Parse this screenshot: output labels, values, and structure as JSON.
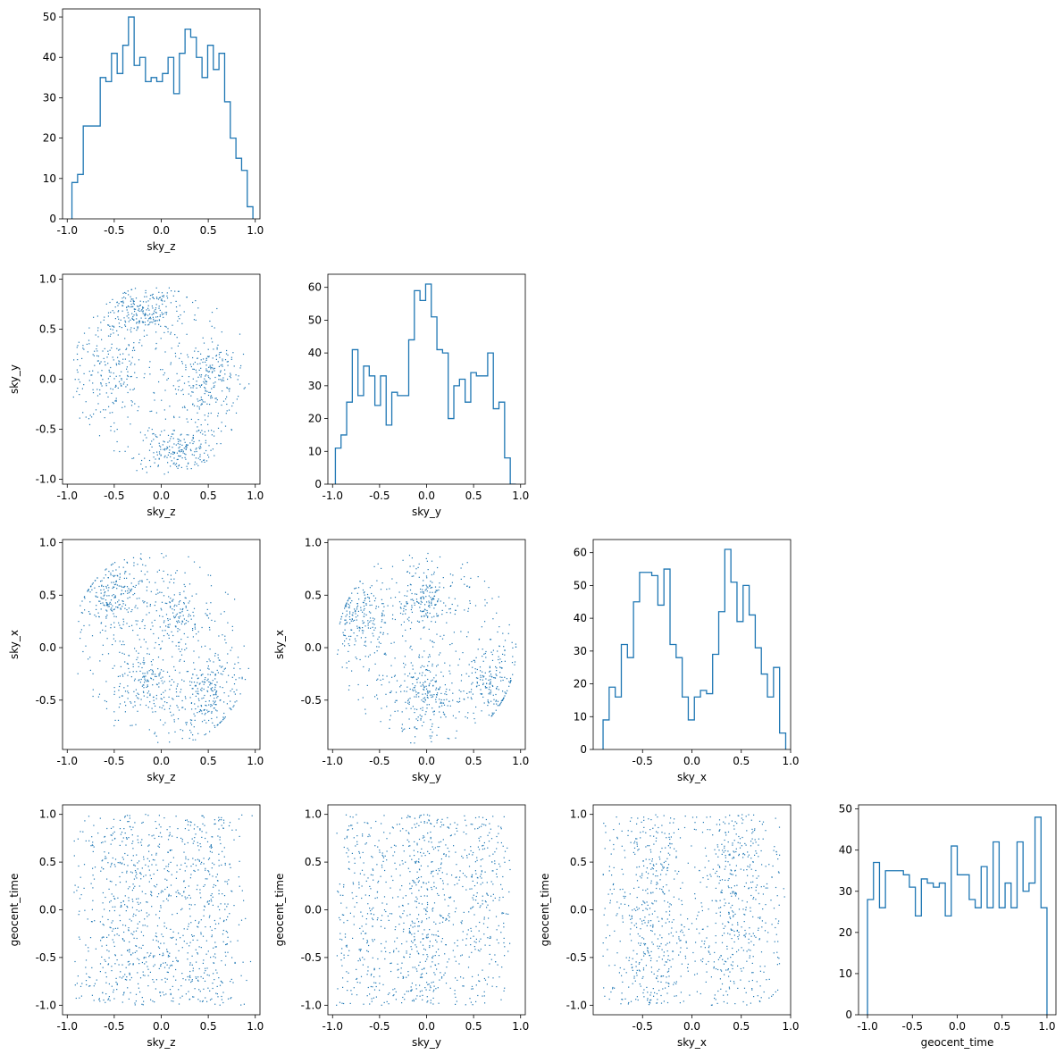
{
  "figure": {
    "variables": [
      "sky_z",
      "sky_y",
      "sky_x",
      "geocent_time"
    ],
    "color": "#1f77b4"
  },
  "chart_data": [
    {
      "type": "step-histogram",
      "row": 0,
      "col": 0,
      "xvar": "sky_z",
      "xlabel": "sky_z",
      "ylabel": "",
      "xlim": [
        -1.05,
        1.05
      ],
      "ylim": [
        0,
        52
      ],
      "xticks": [
        "-1.0",
        "-0.5",
        "0.0",
        "0.5",
        "1.0"
      ],
      "xtick_values": [
        -1.0,
        -0.5,
        0.0,
        0.5,
        1.0
      ],
      "yticks": [
        "0",
        "10",
        "20",
        "30",
        "40",
        "50"
      ],
      "ytick_values": [
        0,
        10,
        20,
        30,
        40,
        50
      ],
      "bin_range": [
        -0.95,
        0.975
      ],
      "counts": [
        9,
        11,
        23,
        23,
        23,
        35,
        34,
        41,
        36,
        43,
        50,
        38,
        40,
        34,
        35,
        34,
        36,
        40,
        31,
        41,
        47,
        45,
        40,
        35,
        43,
        37,
        41,
        29,
        20,
        15,
        12,
        3
      ]
    },
    {
      "type": "scatter",
      "row": 1,
      "col": 0,
      "xvar": "sky_z",
      "yvar": "sky_y",
      "xlabel": "sky_z",
      "ylabel": "sky_y",
      "xlim": [
        -1.05,
        1.05
      ],
      "ylim": [
        -1.05,
        1.05
      ],
      "xticks": [
        "-1.0",
        "-0.5",
        "0.0",
        "0.5",
        "1.0"
      ],
      "xtick_values": [
        -1.0,
        -0.5,
        0.0,
        0.5,
        1.0
      ],
      "yticks": [
        "-1.0",
        "-0.5",
        "0.0",
        "0.5",
        "1.0"
      ],
      "ytick_values": [
        -1.0,
        -0.5,
        0.0,
        0.5,
        1.0
      ],
      "points_note": "dense scatter of about 1000 points; clusters estimated",
      "clusters": [
        {
          "cx": -0.2,
          "cy": 0.68,
          "sx": 0.2,
          "sy": 0.12,
          "weight": 0.28
        },
        {
          "cx": 0.2,
          "cy": -0.68,
          "sx": 0.2,
          "sy": 0.12,
          "weight": 0.28
        },
        {
          "cx": 0.5,
          "cy": 0.0,
          "sx": 0.17,
          "sy": 0.22,
          "weight": 0.22
        },
        {
          "cx": -0.55,
          "cy": 0.1,
          "sx": 0.18,
          "sy": 0.25,
          "weight": 0.22
        }
      ],
      "uniform_fraction": 0.25,
      "count": 1000
    },
    {
      "type": "step-histogram",
      "row": 1,
      "col": 1,
      "xvar": "sky_y",
      "xlabel": "sky_y",
      "ylabel": "",
      "xlim": [
        -1.05,
        1.05
      ],
      "ylim": [
        0,
        64
      ],
      "xticks": [
        "-1.0",
        "-0.5",
        "0.0",
        "0.5",
        "1.0"
      ],
      "xtick_values": [
        -1.0,
        -0.5,
        0.0,
        0.5,
        1.0
      ],
      "yticks": [
        "0",
        "10",
        "20",
        "30",
        "40",
        "50",
        "60"
      ],
      "ytick_values": [
        0,
        10,
        20,
        30,
        40,
        50,
        60
      ],
      "bin_range": [
        -0.97,
        0.95
      ],
      "counts": [
        11,
        15,
        25,
        41,
        27,
        36,
        33,
        24,
        33,
        18,
        28,
        27,
        27,
        44,
        59,
        56,
        61,
        51,
        41,
        40,
        20,
        30,
        32,
        25,
        34,
        33,
        33,
        40,
        23,
        25,
        8,
        0
      ]
    },
    {
      "type": "scatter",
      "row": 2,
      "col": 0,
      "xvar": "sky_z",
      "yvar": "sky_x",
      "xlabel": "sky_z",
      "ylabel": "sky_x",
      "xlim": [
        -1.05,
        1.05
      ],
      "ylim": [
        -0.97,
        1.03
      ],
      "xticks": [
        "-1.0",
        "-0.5",
        "0.0",
        "0.5",
        "1.0"
      ],
      "xtick_values": [
        -1.0,
        -0.5,
        0.0,
        0.5,
        1.0
      ],
      "yticks": [
        "-0.5",
        "0.0",
        "0.5",
        "1.0"
      ],
      "ytick_values": [
        -0.5,
        0.0,
        0.5,
        1.0
      ],
      "clusters": [
        {
          "cx": -0.5,
          "cy": 0.5,
          "sx": 0.18,
          "sy": 0.18,
          "weight": 0.3
        },
        {
          "cx": 0.5,
          "cy": -0.5,
          "sx": 0.18,
          "sy": 0.18,
          "weight": 0.3
        },
        {
          "cx": 0.15,
          "cy": 0.3,
          "sx": 0.15,
          "sy": 0.15,
          "weight": 0.2
        },
        {
          "cx": -0.15,
          "cy": -0.35,
          "sx": 0.15,
          "sy": 0.15,
          "weight": 0.2
        }
      ],
      "uniform_fraction": 0.25,
      "count": 1000
    },
    {
      "type": "scatter",
      "row": 2,
      "col": 1,
      "xvar": "sky_y",
      "yvar": "sky_x",
      "xlabel": "sky_y",
      "ylabel": "sky_x",
      "xlim": [
        -1.05,
        1.05
      ],
      "ylim": [
        -0.97,
        1.03
      ],
      "xticks": [
        "-1.0",
        "-0.5",
        "0.0",
        "0.5",
        "1.0"
      ],
      "xtick_values": [
        -1.0,
        -0.5,
        0.0,
        0.5,
        1.0
      ],
      "yticks": [
        "-0.5",
        "0.0",
        "0.5",
        "1.0"
      ],
      "ytick_values": [
        -0.5,
        0.0,
        0.5,
        1.0
      ],
      "clusters": [
        {
          "cx": -0.7,
          "cy": 0.3,
          "sx": 0.15,
          "sy": 0.2,
          "weight": 0.25
        },
        {
          "cx": 0.0,
          "cy": 0.45,
          "sx": 0.15,
          "sy": 0.15,
          "weight": 0.25
        },
        {
          "cx": 0.0,
          "cy": -0.45,
          "sx": 0.15,
          "sy": 0.15,
          "weight": 0.25
        },
        {
          "cx": 0.7,
          "cy": -0.35,
          "sx": 0.15,
          "sy": 0.2,
          "weight": 0.25
        }
      ],
      "uniform_fraction": 0.25,
      "count": 1000
    },
    {
      "type": "step-histogram",
      "row": 2,
      "col": 2,
      "xvar": "sky_x",
      "xlabel": "sky_x",
      "ylabel": "",
      "xlim": [
        -1.0,
        1.0
      ],
      "ylim": [
        0,
        64
      ],
      "xticks": [
        "-0.5",
        "0.0",
        "0.5",
        "1.0"
      ],
      "xtick_values": [
        -0.5,
        0.0,
        0.5,
        1.0
      ],
      "yticks": [
        "0",
        "10",
        "20",
        "30",
        "40",
        "50",
        "60"
      ],
      "ytick_values": [
        0,
        10,
        20,
        30,
        40,
        50,
        60
      ],
      "bin_range": [
        -0.9,
        0.95
      ],
      "counts": [
        9,
        19,
        16,
        32,
        28,
        45,
        54,
        54,
        53,
        44,
        55,
        32,
        28,
        16,
        9,
        16,
        18,
        17,
        29,
        42,
        61,
        51,
        39,
        50,
        41,
        31,
        23,
        16,
        25,
        5
      ]
    },
    {
      "type": "scatter",
      "row": 3,
      "col": 0,
      "xvar": "sky_z",
      "yvar": "geocent_time",
      "xlabel": "sky_z",
      "ylabel": "geocent_time",
      "xlim": [
        -1.05,
        1.05
      ],
      "ylim": [
        -1.1,
        1.1
      ],
      "xticks": [
        "-1.0",
        "-0.5",
        "0.0",
        "0.5",
        "1.0"
      ],
      "xtick_values": [
        -1.0,
        -0.5,
        0.0,
        0.5,
        1.0
      ],
      "yticks": [
        "-1.0",
        "-0.5",
        "0.0",
        "0.5",
        "1.0"
      ],
      "ytick_values": [
        -1.0,
        -0.5,
        0.0,
        0.5,
        1.0
      ],
      "x_distribution": "sky_z",
      "y_distribution": "uniform",
      "count": 1000
    },
    {
      "type": "scatter",
      "row": 3,
      "col": 1,
      "xvar": "sky_y",
      "yvar": "geocent_time",
      "xlabel": "sky_y",
      "ylabel": "geocent_time",
      "xlim": [
        -1.05,
        1.05
      ],
      "ylim": [
        -1.1,
        1.1
      ],
      "xticks": [
        "-1.0",
        "-0.5",
        "0.0",
        "0.5",
        "1.0"
      ],
      "xtick_values": [
        -1.0,
        -0.5,
        0.0,
        0.5,
        1.0
      ],
      "yticks": [
        "-1.0",
        "-0.5",
        "0.0",
        "0.5",
        "1.0"
      ],
      "ytick_values": [
        -1.0,
        -0.5,
        0.0,
        0.5,
        1.0
      ],
      "x_distribution": "sky_y",
      "y_distribution": "uniform",
      "count": 1000
    },
    {
      "type": "scatter",
      "row": 3,
      "col": 2,
      "xvar": "sky_x",
      "yvar": "geocent_time",
      "xlabel": "sky_x",
      "ylabel": "geocent_time",
      "xlim": [
        -1.0,
        1.0
      ],
      "ylim": [
        -1.1,
        1.1
      ],
      "xticks": [
        "-0.5",
        "0.0",
        "0.5",
        "1.0"
      ],
      "xtick_values": [
        -0.5,
        0.0,
        0.5,
        1.0
      ],
      "yticks": [
        "-1.0",
        "-0.5",
        "0.0",
        "0.5",
        "1.0"
      ],
      "ytick_values": [
        -1.0,
        -0.5,
        0.0,
        0.5,
        1.0
      ],
      "x_distribution": "sky_x",
      "y_distribution": "uniform",
      "count": 1000
    },
    {
      "type": "step-histogram",
      "row": 3,
      "col": 3,
      "xvar": "geocent_time",
      "xlabel": "geocent_time",
      "ylabel": "",
      "xlim": [
        -1.1,
        1.1
      ],
      "ylim": [
        0,
        51
      ],
      "xticks": [
        "-1.0",
        "-0.5",
        "0.0",
        "0.5",
        "1.0"
      ],
      "xtick_values": [
        -1.0,
        -0.5,
        0.0,
        0.5,
        1.0
      ],
      "yticks": [
        "0",
        "10",
        "20",
        "30",
        "40",
        "50"
      ],
      "ytick_values": [
        0,
        10,
        20,
        30,
        40,
        50
      ],
      "bin_range": [
        -1.0,
        1.0
      ],
      "counts": [
        28,
        37,
        26,
        35,
        35,
        35,
        34,
        31,
        24,
        33,
        32,
        31,
        32,
        24,
        41,
        34,
        34,
        28,
        26,
        36,
        26,
        42,
        26,
        32,
        26,
        42,
        30,
        32,
        48,
        26
      ]
    }
  ]
}
